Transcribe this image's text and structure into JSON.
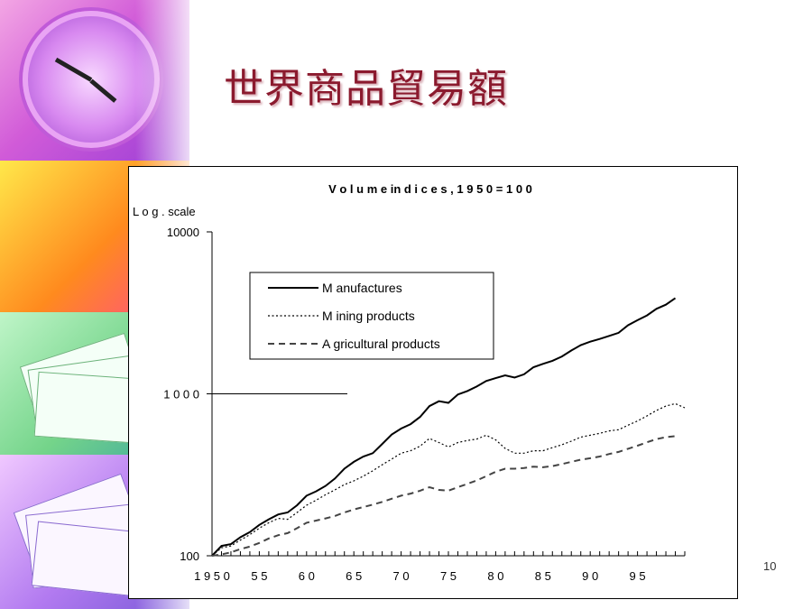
{
  "slide": {
    "title": "世界商品貿易額",
    "page_number": "10"
  },
  "colors": {
    "title": "#8b1a2e",
    "axis": "#000000",
    "series": "#000000"
  },
  "decorations": {
    "icons": [
      "clock-icon",
      "clock-icon",
      "paper-stack-icon",
      "paper-stack-icon"
    ]
  },
  "chart_data": {
    "type": "line",
    "title": "V o l u m e  in d i c e s ,  1 9 5 0 = 1 0 0",
    "ylabel": "L o g .  scale",
    "yscale": "log",
    "ylim": [
      100,
      10000
    ],
    "xlim": [
      1950,
      2000
    ],
    "y_ticks": [
      {
        "value": 100,
        "label": "100"
      },
      {
        "value": 1000,
        "label": "1 0 0 0"
      },
      {
        "value": 10000,
        "label": "10000"
      }
    ],
    "x_ticks": [
      {
        "value": 1950,
        "label": "1 9 5 0"
      },
      {
        "value": 1955,
        "label": "5 5"
      },
      {
        "value": 1960,
        "label": "6 0"
      },
      {
        "value": 1965,
        "label": "6 5"
      },
      {
        "value": 1970,
        "label": "7 0"
      },
      {
        "value": 1975,
        "label": "7 5"
      },
      {
        "value": 1980,
        "label": "8 0"
      },
      {
        "value": 1985,
        "label": "8 5"
      },
      {
        "value": 1990,
        "label": "9 0"
      },
      {
        "value": 1995,
        "label": "9 5"
      }
    ],
    "legend_position": "top-left",
    "grid": false,
    "series": [
      {
        "name": "M anufactures",
        "style": "solid",
        "points": [
          [
            1950,
            100
          ],
          [
            1951,
            115
          ],
          [
            1952,
            118
          ],
          [
            1953,
            130
          ],
          [
            1954,
            140
          ],
          [
            1955,
            155
          ],
          [
            1956,
            168
          ],
          [
            1957,
            180
          ],
          [
            1958,
            185
          ],
          [
            1959,
            205
          ],
          [
            1960,
            235
          ],
          [
            1961,
            250
          ],
          [
            1962,
            270
          ],
          [
            1963,
            300
          ],
          [
            1964,
            345
          ],
          [
            1965,
            380
          ],
          [
            1966,
            410
          ],
          [
            1967,
            430
          ],
          [
            1968,
            490
          ],
          [
            1969,
            560
          ],
          [
            1970,
            610
          ],
          [
            1971,
            650
          ],
          [
            1972,
            720
          ],
          [
            1973,
            840
          ],
          [
            1974,
            900
          ],
          [
            1975,
            880
          ],
          [
            1976,
            990
          ],
          [
            1977,
            1040
          ],
          [
            1978,
            1110
          ],
          [
            1979,
            1200
          ],
          [
            1980,
            1250
          ],
          [
            1981,
            1300
          ],
          [
            1982,
            1260
          ],
          [
            1983,
            1320
          ],
          [
            1984,
            1460
          ],
          [
            1985,
            1530
          ],
          [
            1986,
            1600
          ],
          [
            1987,
            1700
          ],
          [
            1988,
            1850
          ],
          [
            1989,
            2000
          ],
          [
            1990,
            2100
          ],
          [
            1991,
            2180
          ],
          [
            1992,
            2280
          ],
          [
            1993,
            2380
          ],
          [
            1994,
            2650
          ],
          [
            1995,
            2850
          ],
          [
            1996,
            3050
          ],
          [
            1997,
            3350
          ],
          [
            1998,
            3550
          ],
          [
            1999,
            3900
          ]
        ]
      },
      {
        "name": "M ining products",
        "style": "dotted",
        "points": [
          [
            1950,
            100
          ],
          [
            1951,
            112
          ],
          [
            1952,
            115
          ],
          [
            1953,
            125
          ],
          [
            1954,
            135
          ],
          [
            1955,
            148
          ],
          [
            1956,
            160
          ],
          [
            1957,
            170
          ],
          [
            1958,
            168
          ],
          [
            1959,
            185
          ],
          [
            1960,
            205
          ],
          [
            1961,
            220
          ],
          [
            1962,
            238
          ],
          [
            1963,
            255
          ],
          [
            1964,
            275
          ],
          [
            1965,
            290
          ],
          [
            1966,
            310
          ],
          [
            1967,
            335
          ],
          [
            1968,
            365
          ],
          [
            1969,
            395
          ],
          [
            1970,
            430
          ],
          [
            1971,
            445
          ],
          [
            1972,
            475
          ],
          [
            1973,
            530
          ],
          [
            1974,
            500
          ],
          [
            1975,
            470
          ],
          [
            1976,
            500
          ],
          [
            1977,
            515
          ],
          [
            1978,
            525
          ],
          [
            1979,
            555
          ],
          [
            1980,
            520
          ],
          [
            1981,
            460
          ],
          [
            1982,
            430
          ],
          [
            1983,
            430
          ],
          [
            1984,
            445
          ],
          [
            1985,
            445
          ],
          [
            1986,
            465
          ],
          [
            1987,
            485
          ],
          [
            1988,
            510
          ],
          [
            1989,
            540
          ],
          [
            1990,
            555
          ],
          [
            1991,
            570
          ],
          [
            1992,
            590
          ],
          [
            1993,
            600
          ],
          [
            1994,
            640
          ],
          [
            1995,
            680
          ],
          [
            1996,
            730
          ],
          [
            1997,
            790
          ],
          [
            1998,
            840
          ],
          [
            1999,
            870
          ],
          [
            2000,
            820
          ]
        ]
      },
      {
        "name": "A gricultural products",
        "style": "dashed",
        "points": [
          [
            1950,
            100
          ],
          [
            1951,
            102
          ],
          [
            1952,
            105
          ],
          [
            1953,
            110
          ],
          [
            1954,
            114
          ],
          [
            1955,
            120
          ],
          [
            1956,
            128
          ],
          [
            1957,
            134
          ],
          [
            1958,
            138
          ],
          [
            1959,
            148
          ],
          [
            1960,
            160
          ],
          [
            1961,
            165
          ],
          [
            1962,
            170
          ],
          [
            1963,
            176
          ],
          [
            1964,
            185
          ],
          [
            1965,
            193
          ],
          [
            1966,
            200
          ],
          [
            1967,
            207
          ],
          [
            1968,
            215
          ],
          [
            1969,
            225
          ],
          [
            1970,
            235
          ],
          [
            1971,
            242
          ],
          [
            1972,
            252
          ],
          [
            1973,
            265
          ],
          [
            1974,
            255
          ],
          [
            1975,
            252
          ],
          [
            1976,
            265
          ],
          [
            1977,
            278
          ],
          [
            1978,
            292
          ],
          [
            1979,
            310
          ],
          [
            1980,
            330
          ],
          [
            1981,
            345
          ],
          [
            1982,
            345
          ],
          [
            1983,
            348
          ],
          [
            1984,
            355
          ],
          [
            1985,
            352
          ],
          [
            1986,
            358
          ],
          [
            1987,
            368
          ],
          [
            1988,
            380
          ],
          [
            1989,
            392
          ],
          [
            1990,
            400
          ],
          [
            1991,
            410
          ],
          [
            1992,
            425
          ],
          [
            1993,
            438
          ],
          [
            1994,
            458
          ],
          [
            1995,
            478
          ],
          [
            1996,
            502
          ],
          [
            1997,
            525
          ],
          [
            1998,
            540
          ],
          [
            1999,
            548
          ]
        ]
      }
    ]
  }
}
